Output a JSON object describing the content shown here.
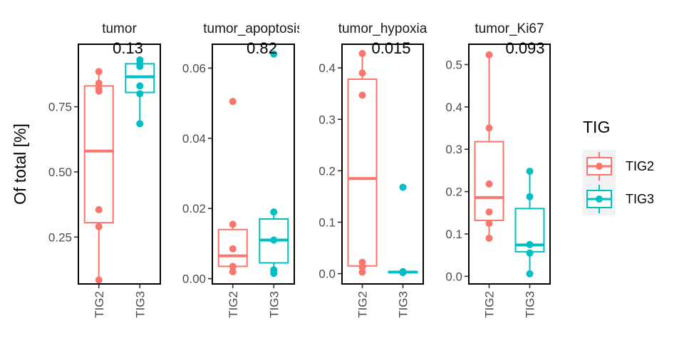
{
  "ylabel": "Of total [%]",
  "legend": {
    "title": "TIG",
    "items": [
      {
        "label": "TIG2",
        "color": "#F8766D"
      },
      {
        "label": "TIG3",
        "color": "#00BFC4"
      }
    ]
  },
  "chart_data": [
    {
      "type": "box",
      "title": "tumor",
      "pvalue": "0.13",
      "categories": [
        "TIG2",
        "TIG3"
      ],
      "ylim": [
        0.07,
        0.99
      ],
      "yticks": [
        0.25,
        0.5,
        0.75
      ],
      "ytick_labels": [
        "0.25",
        "0.50",
        "0.75"
      ],
      "groups": [
        {
          "name": "TIG2",
          "color": "#F8766D",
          "stats": {
            "min": 0.085,
            "q1": 0.305,
            "median": 0.58,
            "q3": 0.83,
            "max": 0.885
          },
          "points": [
            0.885,
            0.84,
            0.82,
            0.81,
            0.355,
            0.29,
            0.085
          ]
        },
        {
          "name": "TIG3",
          "color": "#00BFC4",
          "stats": {
            "min": 0.685,
            "q1": 0.805,
            "median": 0.865,
            "q3": 0.915,
            "max": 0.93
          },
          "points": [
            0.93,
            0.915,
            0.905,
            0.83,
            0.8,
            0.685
          ]
        }
      ]
    },
    {
      "type": "box",
      "title": "tumor_apoptosis",
      "pvalue": "0.82",
      "categories": [
        "TIG2",
        "TIG3"
      ],
      "ylim": [
        -0.0015,
        0.0668
      ],
      "yticks": [
        0.0,
        0.02,
        0.04,
        0.06
      ],
      "ytick_labels": [
        "0.00",
        "0.02",
        "0.04",
        "0.06"
      ],
      "groups": [
        {
          "name": "TIG2",
          "color": "#F8766D",
          "stats": {
            "min": 0.002,
            "q1": 0.0035,
            "median": 0.0065,
            "q3": 0.014,
            "max": 0.0155
          },
          "points": [
            0.0505,
            0.0155,
            0.0085,
            0.0035,
            0.002
          ]
        },
        {
          "name": "TIG3",
          "color": "#00BFC4",
          "stats": {
            "min": 0.0015,
            "q1": 0.0045,
            "median": 0.011,
            "q3": 0.017,
            "max": 0.019
          },
          "points": [
            0.064,
            0.019,
            0.011,
            0.0025,
            0.0015
          ]
        }
      ]
    },
    {
      "type": "box",
      "title": "tumor_hypoxia",
      "pvalue": "0.015",
      "categories": [
        "TIG2",
        "TIG3"
      ],
      "ylim": [
        -0.02,
        0.446
      ],
      "yticks": [
        0.0,
        0.1,
        0.2,
        0.3,
        0.4
      ],
      "ytick_labels": [
        "0.0",
        "0.1",
        "0.2",
        "0.3",
        "0.4"
      ],
      "groups": [
        {
          "name": "TIG2",
          "color": "#F8766D",
          "stats": {
            "min": 0.003,
            "q1": 0.015,
            "median": 0.185,
            "q3": 0.378,
            "max": 0.428
          },
          "points": [
            0.428,
            0.39,
            0.347,
            0.022,
            0.013,
            0.003
          ]
        },
        {
          "name": "TIG3",
          "color": "#00BFC4",
          "stats": {
            "min": 0.001,
            "q1": 0.002,
            "median": 0.003,
            "q3": 0.004,
            "max": 0.005
          },
          "points": [
            0.168,
            0.004,
            0.002
          ]
        }
      ]
    },
    {
      "type": "box",
      "title": "tumor_Ki67",
      "pvalue": "0.093",
      "categories": [
        "TIG2",
        "TIG3"
      ],
      "ylim": [
        -0.018,
        0.548
      ],
      "yticks": [
        0.0,
        0.1,
        0.2,
        0.3,
        0.4,
        0.5
      ],
      "ytick_labels": [
        "0.0",
        "0.1",
        "0.2",
        "0.3",
        "0.4",
        "0.5"
      ],
      "groups": [
        {
          "name": "TIG2",
          "color": "#F8766D",
          "stats": {
            "min": 0.09,
            "q1": 0.132,
            "median": 0.186,
            "q3": 0.318,
            "max": 0.523
          },
          "points": [
            0.523,
            0.35,
            0.218,
            0.152,
            0.125,
            0.09
          ]
        },
        {
          "name": "TIG3",
          "color": "#00BFC4",
          "stats": {
            "min": 0.006,
            "q1": 0.058,
            "median": 0.074,
            "q3": 0.16,
            "max": 0.248
          },
          "points": [
            0.248,
            0.188,
            0.075,
            0.055,
            0.006
          ]
        }
      ]
    }
  ]
}
